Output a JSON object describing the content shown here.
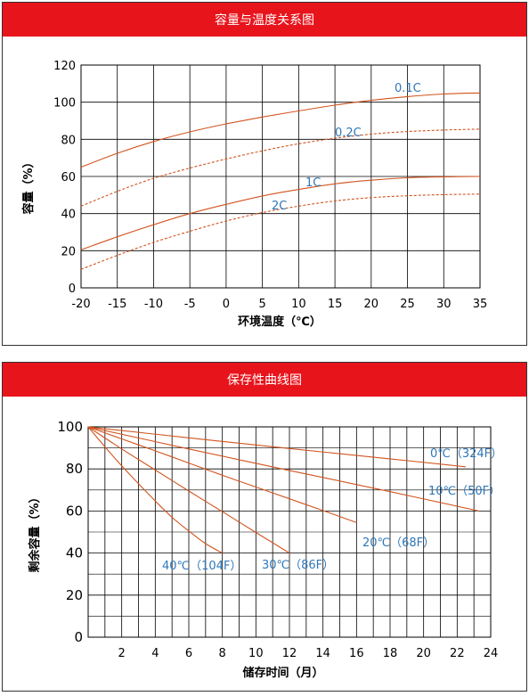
{
  "charts": [
    {
      "header": "容量与温度关系图",
      "chart_data": {
        "type": "line",
        "title": "容量与温度关系图",
        "xlabel": "环境温度（℃）",
        "ylabel": "容量（%）",
        "xlim": [
          -20,
          35
        ],
        "ylim": [
          0,
          120
        ],
        "xticks": [
          -20,
          -15,
          -10,
          -5,
          0,
          5,
          10,
          15,
          20,
          25,
          30,
          35
        ],
        "yticks": [
          0,
          20,
          40,
          60,
          80,
          100,
          120
        ],
        "grid": true,
        "legend": "inline labels",
        "series": [
          {
            "name": "0.1C",
            "style": "solid",
            "x": [
              -20,
              -15,
              -10,
              -5,
              0,
              5,
              10,
              15,
              20,
              25,
              30,
              35
            ],
            "y": [
              65,
              72.5,
              78.8,
              84,
              88.3,
              92,
              95.3,
              98.4,
              101,
              103,
              104.4,
              105
            ]
          },
          {
            "name": "0.2C",
            "style": "dashed",
            "x": [
              -20,
              -15,
              -10,
              -5,
              0,
              5,
              10,
              15,
              20,
              25,
              30,
              35
            ],
            "y": [
              44,
              52,
              59,
              64.5,
              69.4,
              73.8,
              77.6,
              80.6,
              82.8,
              84.2,
              85,
              85.5
            ]
          },
          {
            "name": "1C",
            "style": "solid",
            "x": [
              -20,
              -15,
              -10,
              -5,
              0,
              5,
              10,
              15,
              20,
              25,
              30,
              35
            ],
            "y": [
              20.5,
              27.5,
              34,
              40,
              45,
              49.5,
              53,
              56,
              58,
              59.3,
              59.8,
              60
            ]
          },
          {
            "name": "2C",
            "style": "dashed",
            "x": [
              -20,
              -15,
              -10,
              -5,
              0,
              5,
              10,
              15,
              20,
              25,
              30,
              35
            ],
            "y": [
              10,
              17.5,
              24.5,
              30.5,
              36,
              40.5,
              44,
              46.8,
              48.6,
              49.6,
              50.2,
              50.5
            ]
          }
        ]
      }
    },
    {
      "header": "保存性曲线图",
      "chart_data": {
        "type": "line",
        "title": "保存性曲线图",
        "xlabel": "储存时间（月）",
        "ylabel": "剩余容量（%）",
        "xlim": [
          0,
          24
        ],
        "ylim": [
          0,
          100
        ],
        "xticks": [
          2,
          4,
          6,
          8,
          10,
          12,
          14,
          16,
          18,
          20,
          22,
          24
        ],
        "yticks": [
          0,
          20,
          40,
          60,
          80,
          100
        ],
        "grid": true,
        "legend": "inline labels",
        "series": [
          {
            "name": "0℃（324F）",
            "style": "solid",
            "x": [
              0,
              6,
              12,
              18,
              22.5
            ],
            "y": [
              100,
              94.8,
              89.7,
              84.8,
              81
            ]
          },
          {
            "name": "10℃（50F）",
            "style": "solid",
            "x": [
              0,
              6,
              12,
              18,
              23.3
            ],
            "y": [
              100,
              89.5,
              79.3,
              69.2,
              60
            ]
          },
          {
            "name": "20℃（68F）",
            "style": "solid",
            "x": [
              0,
              2,
              4,
              6,
              8,
              10,
              12,
              14,
              16
            ],
            "y": [
              100,
              94.3,
              88.6,
              82.8,
              77,
              71.4,
              65.8,
              60.2,
              54.5
            ]
          },
          {
            "name": "30℃（86F）",
            "style": "solid",
            "x": [
              0,
              2,
              4,
              6,
              8,
              10,
              12
            ],
            "y": [
              100,
              89.5,
              79.5,
              69.5,
              59.7,
              49.8,
              40
            ]
          },
          {
            "name": "40℃（104F）",
            "style": "solid",
            "x": [
              0,
              1,
              2,
              3,
              4,
              5,
              6,
              7,
              8
            ],
            "y": [
              100,
              90.5,
              81.5,
              73,
              64.8,
              57,
              50.5,
              44.5,
              40
            ]
          }
        ]
      }
    }
  ]
}
